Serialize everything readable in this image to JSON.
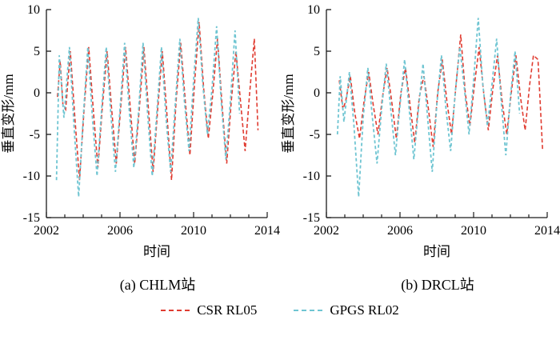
{
  "figure": {
    "background": "#ffffff",
    "axis_color": "#1a1a1a",
    "legend": [
      {
        "label": "CSR RL05",
        "color": "#e03c31"
      },
      {
        "label": "GPGS RL02",
        "color": "#6fc5d2"
      }
    ]
  },
  "chart_data": [
    {
      "type": "line",
      "title": "(a) CHLM站",
      "station": "CHLM",
      "xlabel": "时间",
      "ylabel": "垂直变形/mm",
      "xlim": [
        2002,
        2014
      ],
      "ylim": [
        -15,
        10
      ],
      "xticks": [
        2002,
        2006,
        2010,
        2014
      ],
      "minor_xtick_step": 1,
      "yticks": [
        -15,
        -10,
        -5,
        0,
        5,
        10
      ],
      "grid": false,
      "legend_position": "bottom",
      "series": [
        {
          "name": "CSR RL05",
          "color": "#e03c31",
          "dash": [
            5,
            3
          ],
          "width": 1.6,
          "points": [
            [
              2002.6,
              -0.5
            ],
            [
              2002.75,
              3.8
            ],
            [
              2002.9,
              -1.5
            ],
            [
              2003.05,
              -2
            ],
            [
              2003.3,
              5
            ],
            [
              2003.55,
              -3
            ],
            [
              2003.8,
              -10.5
            ],
            [
              2004.05,
              -2
            ],
            [
              2004.3,
              5.5
            ],
            [
              2004.55,
              -2
            ],
            [
              2004.8,
              -9
            ],
            [
              2005.05,
              -1.5
            ],
            [
              2005.3,
              5
            ],
            [
              2005.55,
              -2
            ],
            [
              2005.8,
              -8.5
            ],
            [
              2006.05,
              -1.5
            ],
            [
              2006.3,
              5.5
            ],
            [
              2006.55,
              -1.5
            ],
            [
              2006.8,
              -8.5
            ],
            [
              2007.05,
              -2
            ],
            [
              2007.3,
              5.5
            ],
            [
              2007.55,
              -2
            ],
            [
              2007.8,
              -9.5
            ],
            [
              2008.05,
              -2
            ],
            [
              2008.3,
              5
            ],
            [
              2008.55,
              -2.5
            ],
            [
              2008.8,
              -10.5
            ],
            [
              2009.05,
              -1
            ],
            [
              2009.3,
              6
            ],
            [
              2009.55,
              -1
            ],
            [
              2009.8,
              -7.5
            ],
            [
              2010.05,
              1
            ],
            [
              2010.3,
              8.5
            ],
            [
              2010.55,
              0.5
            ],
            [
              2010.8,
              -5.5
            ],
            [
              2011.05,
              0
            ],
            [
              2011.3,
              6.5
            ],
            [
              2011.55,
              -1.5
            ],
            [
              2011.8,
              -8.5
            ],
            [
              2012.05,
              -1
            ],
            [
              2012.3,
              5
            ],
            [
              2012.55,
              -1
            ],
            [
              2012.8,
              -7
            ],
            [
              2013.05,
              0
            ],
            [
              2013.3,
              6.5
            ],
            [
              2013.5,
              -4.5
            ]
          ]
        },
        {
          "name": "GPGS RL02",
          "color": "#6fc5d2",
          "dash": [
            4,
            3
          ],
          "width": 1.8,
          "points": [
            [
              2002.55,
              -10.5
            ],
            [
              2002.7,
              4.5
            ],
            [
              2002.95,
              -3
            ],
            [
              2003.25,
              5.5
            ],
            [
              2003.5,
              -4
            ],
            [
              2003.75,
              -12.5
            ],
            [
              2004.0,
              -3
            ],
            [
              2004.25,
              5.5
            ],
            [
              2004.5,
              -3
            ],
            [
              2004.75,
              -10
            ],
            [
              2005.0,
              -2
            ],
            [
              2005.25,
              5.5
            ],
            [
              2005.5,
              -2.5
            ],
            [
              2005.75,
              -9.5
            ],
            [
              2006.0,
              -2
            ],
            [
              2006.25,
              6
            ],
            [
              2006.5,
              -2
            ],
            [
              2006.75,
              -9
            ],
            [
              2007.0,
              -2.5
            ],
            [
              2007.25,
              6
            ],
            [
              2007.5,
              -2.5
            ],
            [
              2007.75,
              -10
            ],
            [
              2008.0,
              -2.5
            ],
            [
              2008.25,
              5.5
            ],
            [
              2008.5,
              -3
            ],
            [
              2008.75,
              -9.5
            ],
            [
              2009.0,
              -1.5
            ],
            [
              2009.25,
              6.5
            ],
            [
              2009.5,
              -1
            ],
            [
              2009.75,
              -7
            ],
            [
              2010.0,
              1.5
            ],
            [
              2010.25,
              9
            ],
            [
              2010.5,
              1
            ],
            [
              2010.75,
              -5
            ],
            [
              2011.0,
              0.5
            ],
            [
              2011.25,
              8
            ],
            [
              2011.5,
              -1
            ],
            [
              2011.75,
              -8
            ],
            [
              2012.0,
              -1
            ],
            [
              2012.25,
              7.5
            ],
            [
              2012.5,
              -2.5
            ]
          ]
        }
      ]
    },
    {
      "type": "line",
      "title": "(b) DRCL站",
      "station": "DRCL",
      "xlabel": "时间",
      "ylabel": "垂直变形/mm",
      "xlim": [
        2002,
        2014
      ],
      "ylim": [
        -15,
        10
      ],
      "xticks": [
        2002,
        2006,
        2010,
        2014
      ],
      "minor_xtick_step": 1,
      "yticks": [
        -15,
        -10,
        -5,
        0,
        5,
        10
      ],
      "grid": false,
      "legend_position": "bottom",
      "series": [
        {
          "name": "CSR RL05",
          "color": "#e03c31",
          "dash": [
            5,
            3
          ],
          "width": 1.6,
          "points": [
            [
              2002.7,
              1.5
            ],
            [
              2002.9,
              -2
            ],
            [
              2003.05,
              -1
            ],
            [
              2003.3,
              2
            ],
            [
              2003.55,
              -2.5
            ],
            [
              2003.8,
              -5.5
            ],
            [
              2004.05,
              -1
            ],
            [
              2004.3,
              2.5
            ],
            [
              2004.55,
              -1.5
            ],
            [
              2004.8,
              -5
            ],
            [
              2005.05,
              -0.5
            ],
            [
              2005.3,
              3
            ],
            [
              2005.55,
              -1
            ],
            [
              2005.8,
              -5.5
            ],
            [
              2006.05,
              0
            ],
            [
              2006.3,
              3
            ],
            [
              2006.55,
              -1.5
            ],
            [
              2006.8,
              -6
            ],
            [
              2007.05,
              -0.5
            ],
            [
              2007.3,
              2
            ],
            [
              2007.55,
              -2
            ],
            [
              2007.8,
              -6.5
            ],
            [
              2008.05,
              0
            ],
            [
              2008.3,
              4
            ],
            [
              2008.55,
              -1
            ],
            [
              2008.8,
              -5
            ],
            [
              2009.05,
              1
            ],
            [
              2009.3,
              7
            ],
            [
              2009.55,
              0
            ],
            [
              2009.8,
              -4
            ],
            [
              2010.05,
              1
            ],
            [
              2010.3,
              5.5
            ],
            [
              2010.55,
              0
            ],
            [
              2010.8,
              -4.5
            ],
            [
              2011.05,
              0.5
            ],
            [
              2011.3,
              4.5
            ],
            [
              2011.55,
              -1
            ],
            [
              2011.8,
              -5
            ],
            [
              2012.05,
              0
            ],
            [
              2012.3,
              4.5
            ],
            [
              2012.55,
              -0.5
            ],
            [
              2012.8,
              -4.5
            ],
            [
              2013.05,
              1
            ],
            [
              2013.25,
              4.5
            ],
            [
              2013.5,
              4
            ],
            [
              2013.75,
              -7
            ]
          ]
        },
        {
          "name": "GPGS RL02",
          "color": "#6fc5d2",
          "dash": [
            4,
            3
          ],
          "width": 1.8,
          "points": [
            [
              2002.6,
              -5
            ],
            [
              2002.75,
              2
            ],
            [
              2002.95,
              -3.5
            ],
            [
              2003.25,
              2.5
            ],
            [
              2003.5,
              -4
            ],
            [
              2003.75,
              -12.5
            ],
            [
              2004.0,
              -3
            ],
            [
              2004.25,
              3
            ],
            [
              2004.5,
              -3
            ],
            [
              2004.75,
              -8.5
            ],
            [
              2005.0,
              -2
            ],
            [
              2005.25,
              3.5
            ],
            [
              2005.5,
              -2
            ],
            [
              2005.75,
              -7.5
            ],
            [
              2006.0,
              -1.5
            ],
            [
              2006.25,
              4
            ],
            [
              2006.5,
              -2
            ],
            [
              2006.75,
              -8
            ],
            [
              2007.0,
              -2
            ],
            [
              2007.25,
              3.5
            ],
            [
              2007.5,
              -3
            ],
            [
              2007.75,
              -9.5
            ],
            [
              2008.0,
              -1.5
            ],
            [
              2008.25,
              4.5
            ],
            [
              2008.5,
              -2
            ],
            [
              2008.75,
              -7
            ],
            [
              2009.0,
              0
            ],
            [
              2009.25,
              5.5
            ],
            [
              2009.5,
              0.5
            ],
            [
              2009.75,
              -5
            ],
            [
              2010.0,
              1.5
            ],
            [
              2010.25,
              9
            ],
            [
              2010.5,
              1
            ],
            [
              2010.75,
              -4
            ],
            [
              2011.0,
              1
            ],
            [
              2011.25,
              6.5
            ],
            [
              2011.5,
              -1
            ],
            [
              2011.75,
              -7.5
            ],
            [
              2012.0,
              -0.5
            ],
            [
              2012.25,
              5
            ],
            [
              2012.5,
              -2.5
            ]
          ]
        }
      ]
    }
  ]
}
